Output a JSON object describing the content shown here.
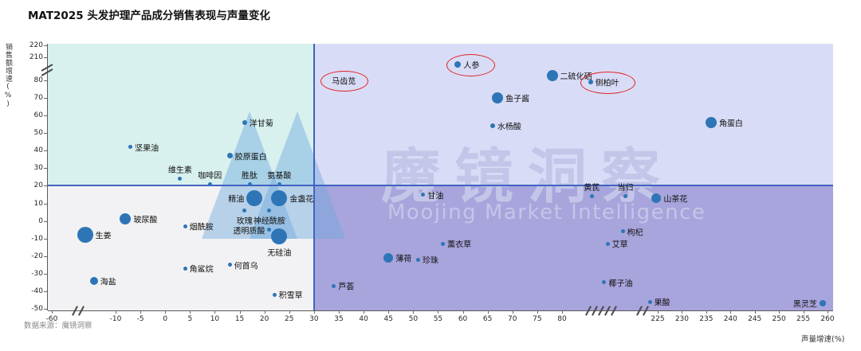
{
  "title": "MAT2025 头发护理产品成分销售表现与声量变化",
  "source_note": "数据来源：魔镜洞察",
  "watermark": {
    "cn": "魔镜洞察",
    "en": "Moojing Market Intelligence"
  },
  "axes": {
    "x_label": "声量增速(%)",
    "y_label": "销售额增速(%)",
    "x_ticks": [
      -60,
      -10,
      -5,
      0,
      5,
      10,
      15,
      20,
      25,
      30,
      35,
      40,
      45,
      50,
      55,
      60,
      65,
      70,
      75,
      80,
      225,
      230,
      235,
      240,
      245,
      250,
      255,
      260
    ],
    "y_ticks": [
      220,
      210,
      80,
      70,
      60,
      50,
      40,
      30,
      20,
      10,
      0,
      -10,
      -20,
      -30,
      -40,
      -50
    ]
  },
  "colors": {
    "dot": "#2e75b6",
    "divider": "#4063c0",
    "highlight_circle": "#e02420",
    "quad_top_left": "#d8f1ee",
    "quad_top_right": "#d9dcf6",
    "quad_bottom_left": "#f2f2f4",
    "quad_bottom_right": "#a8a4dc",
    "watermark": "#c3c6e8",
    "logo": "#6fa8dc"
  },
  "chart_data": {
    "type": "scatter",
    "title": "MAT2025 头发护理产品成分销售表现与声量变化",
    "xlabel": "声量增速(%)",
    "ylabel": "销售额增速(%)",
    "xlim": [
      -60,
      260
    ],
    "ylim": [
      -50,
      220
    ],
    "x_breaks": [
      [
        -60,
        -10
      ],
      [
        80,
        225
      ]
    ],
    "y_breaks": [
      [
        80,
        210
      ]
    ],
    "grid": false,
    "legend": false,
    "quadrant_split": {
      "x": 30,
      "y": 20
    },
    "points": [
      {
        "label": "人参",
        "x": 59,
        "y": 170,
        "r": 4,
        "pos": "right",
        "circled": true
      },
      {
        "label": "马齿苋",
        "x": 36,
        "y": 82,
        "r": 0,
        "pos": "center",
        "circled": true
      },
      {
        "label": "二硫化硒",
        "x": 78,
        "y": 105,
        "r": 7,
        "pos": "right"
      },
      {
        "label": "侧柏叶",
        "x": 123,
        "y": 79,
        "r": 3,
        "pos": "right",
        "circled": true
      },
      {
        "label": "鱼子酱",
        "x": 67,
        "y": 70,
        "r": 7,
        "pos": "right"
      },
      {
        "label": "水杨酸",
        "x": 66,
        "y": 54,
        "r": 3,
        "pos": "right"
      },
      {
        "label": "角蛋白",
        "x": 236,
        "y": 56,
        "r": 7,
        "pos": "right"
      },
      {
        "label": "洋甘菊",
        "x": 16,
        "y": 56,
        "r": 3,
        "pos": "right"
      },
      {
        "label": "坚果油",
        "x": -7,
        "y": 42,
        "r": 2.5,
        "pos": "right"
      },
      {
        "label": "胶原蛋白",
        "x": 13,
        "y": 37,
        "r": 3.5,
        "pos": "right"
      },
      {
        "label": "维生素",
        "x": 3,
        "y": 24,
        "r": 2.5,
        "pos": "above"
      },
      {
        "label": "咖啡因",
        "x": 9,
        "y": 21,
        "r": 2.5,
        "pos": "above"
      },
      {
        "label": "胜肽",
        "x": 17,
        "y": 21,
        "r": 2.5,
        "pos": "above"
      },
      {
        "label": "氨基酸",
        "x": 23,
        "y": 21,
        "r": 2.5,
        "pos": "above"
      },
      {
        "label": "精油",
        "x": 18,
        "y": 13,
        "r": 10,
        "pos": "left"
      },
      {
        "label": "金盏花",
        "x": 23,
        "y": 13,
        "r": 10,
        "pos": "right"
      },
      {
        "label": "玫瑰",
        "x": 16,
        "y": 6,
        "r": 2.5,
        "pos": "below"
      },
      {
        "label": "神经酰胺",
        "x": 21,
        "y": 6,
        "r": 2.5,
        "pos": "below"
      },
      {
        "label": "甘油",
        "x": 52,
        "y": 15,
        "r": 2.5,
        "pos": "right"
      },
      {
        "label": "黄芪",
        "x": 125,
        "y": 14,
        "r": 2.5,
        "pos": "above"
      },
      {
        "label": "当归",
        "x": 176,
        "y": 14,
        "r": 2.5,
        "pos": "above"
      },
      {
        "label": "山茶花",
        "x": 223,
        "y": 13,
        "r": 6,
        "pos": "right"
      },
      {
        "label": "玻尿酸",
        "x": -8,
        "y": 1,
        "r": 7,
        "pos": "right"
      },
      {
        "label": "烟酰胺",
        "x": 4,
        "y": -3,
        "r": 2.5,
        "pos": "right"
      },
      {
        "label": "生姜",
        "x": -34,
        "y": -8,
        "r": 10,
        "pos": "right"
      },
      {
        "label": "透明质酸",
        "x": 21,
        "y": -5,
        "r": 2.5,
        "pos": "left"
      },
      {
        "label": "无硅油",
        "x": 23,
        "y": -9,
        "r": 10,
        "pos": "below"
      },
      {
        "label": "枸杞",
        "x": 172,
        "y": -6,
        "r": 2.5,
        "pos": "right"
      },
      {
        "label": "薰衣草",
        "x": 56,
        "y": -13,
        "r": 2.5,
        "pos": "right"
      },
      {
        "label": "艾草",
        "x": 149,
        "y": -13,
        "r": 2.5,
        "pos": "right"
      },
      {
        "label": "薄荷",
        "x": 45,
        "y": -21,
        "r": 6,
        "pos": "right"
      },
      {
        "label": "珍珠",
        "x": 51,
        "y": -22,
        "r": 2.5,
        "pos": "right"
      },
      {
        "label": "何首乌",
        "x": 13,
        "y": -25,
        "r": 2.5,
        "pos": "right"
      },
      {
        "label": "角鲨烷",
        "x": 4,
        "y": -27,
        "r": 2.5,
        "pos": "right"
      },
      {
        "label": "海盐",
        "x": -27,
        "y": -34,
        "r": 5,
        "pos": "right"
      },
      {
        "label": "芦荟",
        "x": 34,
        "y": -37,
        "r": 2.5,
        "pos": "right"
      },
      {
        "label": "积雪草",
        "x": 22,
        "y": -42,
        "r": 2.5,
        "pos": "right"
      },
      {
        "label": "椰子油",
        "x": 144,
        "y": -35,
        "r": 2.5,
        "pos": "right"
      },
      {
        "label": "果酸",
        "x": 213,
        "y": -46,
        "r": 2.5,
        "pos": "right"
      },
      {
        "label": "黑灵芝",
        "x": 259,
        "y": -47,
        "r": 4,
        "pos": "left"
      }
    ]
  }
}
